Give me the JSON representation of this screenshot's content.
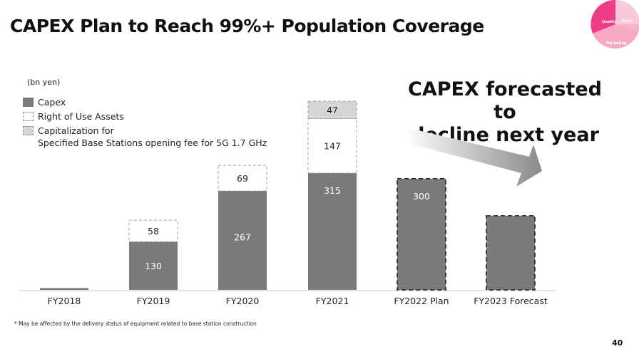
{
  "title": "CAPEX Plan to Reach 99%+ Population Coverage",
  "callout": [
    "CAPEX forecasted to",
    "decline next year"
  ],
  "unit_label": "(bn yen)",
  "legend": [
    {
      "key": "capex",
      "label": [
        "Capex"
      ]
    },
    {
      "key": "rou",
      "label": [
        "Right of Use Assets"
      ]
    },
    {
      "key": "cap",
      "label": [
        "Capitalization for",
        "Specified Base Stations opening fee for 5G 1.7 GHz"
      ]
    }
  ],
  "logo": {
    "labels": [
      "Quality",
      "Price",
      "Marketing"
    ],
    "color": "#f0307a"
  },
  "footnote": "* May be affected by the delivery status of equipment related to base station construction",
  "page_number": "40",
  "colors": {
    "capex": "#7a7a7a",
    "rou": "#ffffff",
    "cap": "#d6d6d6",
    "arrow": "#8a8a8a"
  },
  "chart_data": {
    "type": "bar",
    "stacked": true,
    "categories": [
      "FY2018",
      "FY2019",
      "FY2020",
      "FY2021",
      "FY2022 Plan",
      "FY2023 Forecast"
    ],
    "series": [
      {
        "name": "Capex",
        "values": [
          5,
          130,
          267,
          315,
          300,
          200
        ],
        "labels": [
          "",
          "130",
          "267",
          "315",
          "300",
          ""
        ]
      },
      {
        "name": "Right of Use Assets",
        "values": [
          0,
          58,
          69,
          147,
          0,
          0
        ],
        "labels": [
          "",
          "58",
          "69",
          "147",
          "",
          ""
        ]
      },
      {
        "name": "Capitalization for Specified Base Stations opening fee for 5G 1.7 GHz",
        "values": [
          0,
          0,
          0,
          47,
          0,
          0
        ],
        "labels": [
          "",
          "",
          "",
          "47",
          "",
          ""
        ]
      }
    ],
    "dashed_outline_categories": [
      "FY2022 Plan",
      "FY2023 Forecast"
    ],
    "ylim": [
      0,
      509
    ]
  }
}
